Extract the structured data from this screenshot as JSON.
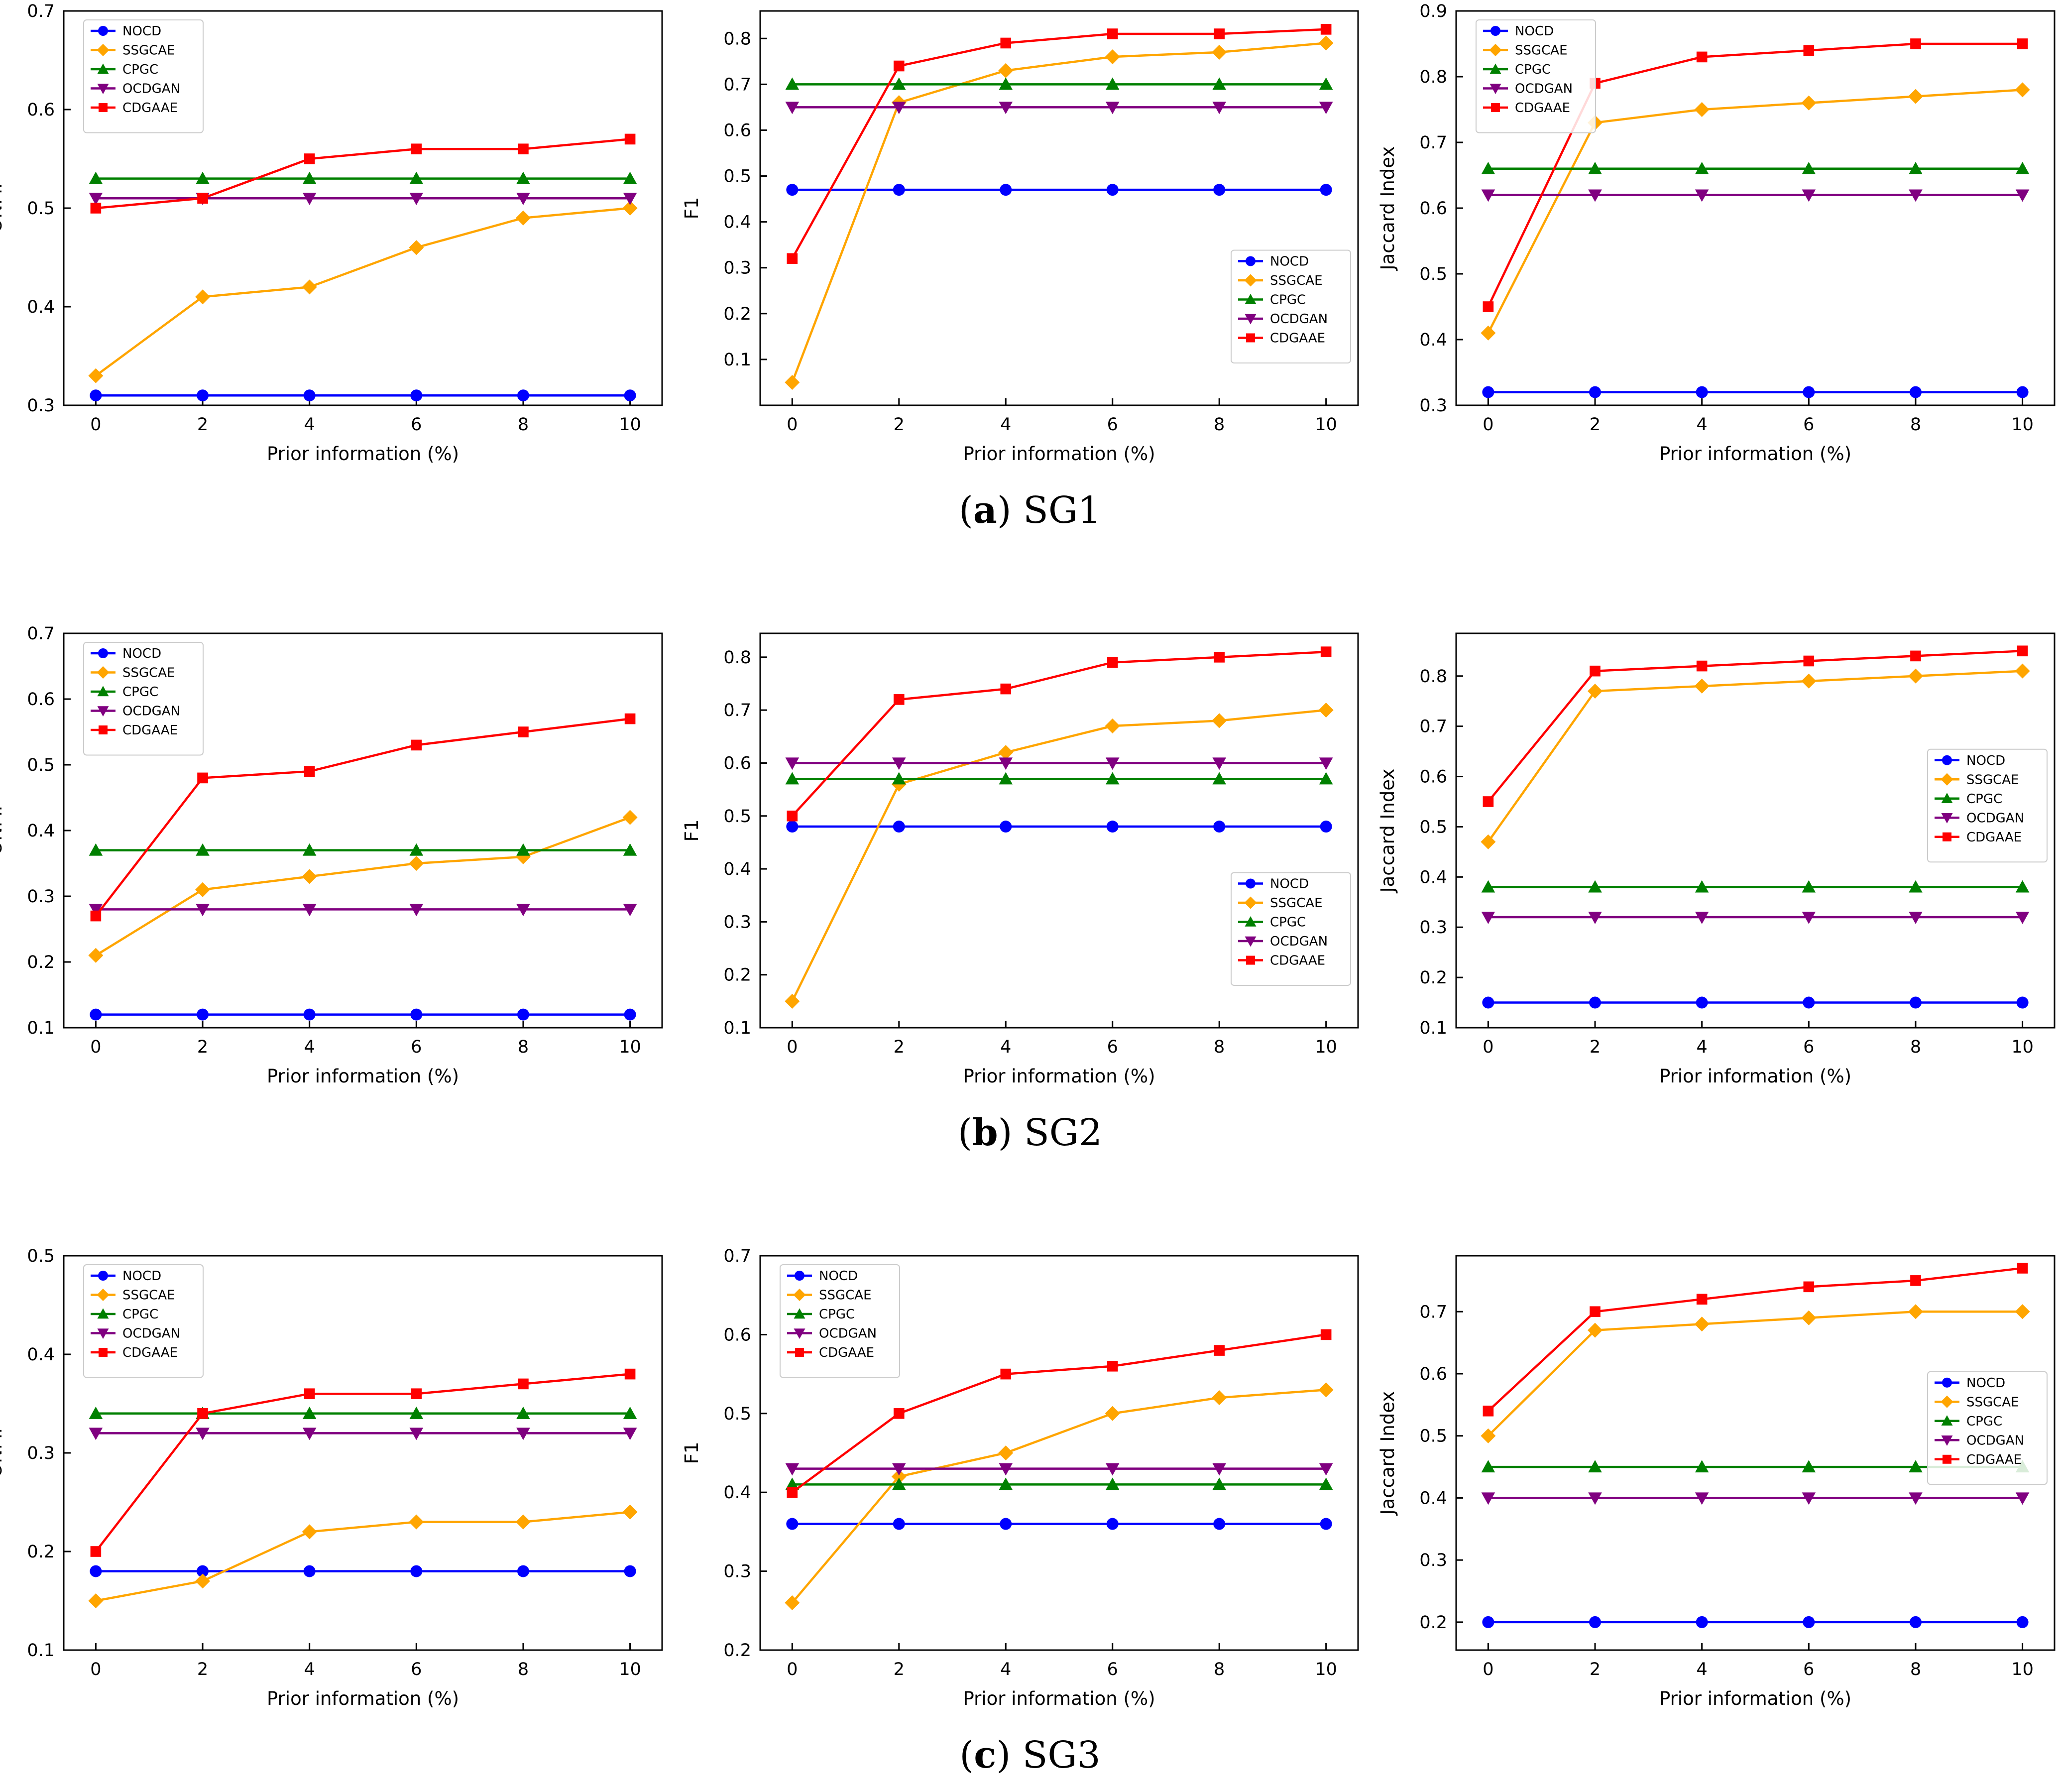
{
  "figure": {
    "row_captions": [
      {
        "letter": "a",
        "name": "SG1"
      },
      {
        "letter": "b",
        "name": "SG2"
      },
      {
        "letter": "c",
        "name": "SG3"
      }
    ]
  },
  "styles": {
    "NOCD": {
      "color": "#0000ff",
      "marker": "circle"
    },
    "SSGCAE": {
      "color": "#ffa500",
      "marker": "diamond"
    },
    "CPGC": {
      "color": "#008000",
      "marker": "triangle-up"
    },
    "OCDGAN": {
      "color": "#800080",
      "marker": "triangle-down"
    },
    "CDGAAE": {
      "color": "#ff0000",
      "marker": "square"
    }
  },
  "chart_data": [
    {
      "type": "line",
      "group": "SG1",
      "xlabel": "Prior information (%)",
      "ylabel": "ONMI",
      "x": [
        0,
        2,
        4,
        6,
        8,
        10
      ],
      "xlim": [
        -0.6,
        10.6
      ],
      "xticks": [
        "0",
        "2",
        "4",
        "6",
        "8",
        "10"
      ],
      "ylim": [
        0.3,
        0.7
      ],
      "yticks": [
        "0.3",
        "0.4",
        "0.5",
        "0.6",
        "0.7"
      ],
      "legend": "upper-left",
      "series": [
        {
          "name": "NOCD",
          "values": [
            0.31,
            0.31,
            0.31,
            0.31,
            0.31,
            0.31
          ]
        },
        {
          "name": "SSGCAE",
          "values": [
            0.33,
            0.41,
            0.42,
            0.46,
            0.49,
            0.5
          ]
        },
        {
          "name": "CPGC",
          "values": [
            0.53,
            0.53,
            0.53,
            0.53,
            0.53,
            0.53
          ]
        },
        {
          "name": "OCDGAN",
          "values": [
            0.51,
            0.51,
            0.51,
            0.51,
            0.51,
            0.51
          ]
        },
        {
          "name": "CDGAAE",
          "values": [
            0.5,
            0.51,
            0.55,
            0.56,
            0.56,
            0.57
          ]
        }
      ]
    },
    {
      "type": "line",
      "group": "SG1",
      "xlabel": "Prior information (%)",
      "ylabel": "F1",
      "x": [
        0,
        2,
        4,
        6,
        8,
        10
      ],
      "xlim": [
        -0.6,
        10.6
      ],
      "xticks": [
        "0",
        "2",
        "4",
        "6",
        "8",
        "10"
      ],
      "ylim": [
        0.0,
        0.86
      ],
      "yticks": [
        "0.1",
        "0.2",
        "0.3",
        "0.4",
        "0.5",
        "0.6",
        "0.7",
        "0.8"
      ],
      "legend": "lower-right",
      "series": [
        {
          "name": "NOCD",
          "values": [
            0.47,
            0.47,
            0.47,
            0.47,
            0.47,
            0.47
          ]
        },
        {
          "name": "SSGCAE",
          "values": [
            0.05,
            0.66,
            0.73,
            0.76,
            0.77,
            0.79
          ]
        },
        {
          "name": "CPGC",
          "values": [
            0.7,
            0.7,
            0.7,
            0.7,
            0.7,
            0.7
          ]
        },
        {
          "name": "OCDGAN",
          "values": [
            0.65,
            0.65,
            0.65,
            0.65,
            0.65,
            0.65
          ]
        },
        {
          "name": "CDGAAE",
          "values": [
            0.32,
            0.74,
            0.79,
            0.81,
            0.81,
            0.82
          ]
        }
      ]
    },
    {
      "type": "line",
      "group": "SG1",
      "xlabel": "Prior information (%)",
      "ylabel": "Jaccard Index",
      "x": [
        0,
        2,
        4,
        6,
        8,
        10
      ],
      "xlim": [
        -0.6,
        10.6
      ],
      "xticks": [
        "0",
        "2",
        "4",
        "6",
        "8",
        "10"
      ],
      "ylim": [
        0.3,
        0.9
      ],
      "yticks": [
        "0.3",
        "0.4",
        "0.5",
        "0.6",
        "0.7",
        "0.8",
        "0.9"
      ],
      "legend": "upper-left",
      "series": [
        {
          "name": "NOCD",
          "values": [
            0.32,
            0.32,
            0.32,
            0.32,
            0.32,
            0.32
          ]
        },
        {
          "name": "SSGCAE",
          "values": [
            0.41,
            0.73,
            0.75,
            0.76,
            0.77,
            0.78
          ]
        },
        {
          "name": "CPGC",
          "values": [
            0.66,
            0.66,
            0.66,
            0.66,
            0.66,
            0.66
          ]
        },
        {
          "name": "OCDGAN",
          "values": [
            0.62,
            0.62,
            0.62,
            0.62,
            0.62,
            0.62
          ]
        },
        {
          "name": "CDGAAE",
          "values": [
            0.45,
            0.79,
            0.83,
            0.84,
            0.85,
            0.85
          ]
        }
      ]
    },
    {
      "type": "line",
      "group": "SG2",
      "xlabel": "Prior information (%)",
      "ylabel": "ONMI",
      "x": [
        0,
        2,
        4,
        6,
        8,
        10
      ],
      "xlim": [
        -0.6,
        10.6
      ],
      "xticks": [
        "0",
        "2",
        "4",
        "6",
        "8",
        "10"
      ],
      "ylim": [
        0.1,
        0.7
      ],
      "yticks": [
        "0.1",
        "0.2",
        "0.3",
        "0.4",
        "0.5",
        "0.6",
        "0.7"
      ],
      "legend": "upper-left",
      "series": [
        {
          "name": "NOCD",
          "values": [
            0.12,
            0.12,
            0.12,
            0.12,
            0.12,
            0.12
          ]
        },
        {
          "name": "SSGCAE",
          "values": [
            0.21,
            0.31,
            0.33,
            0.35,
            0.36,
            0.42
          ]
        },
        {
          "name": "CPGC",
          "values": [
            0.37,
            0.37,
            0.37,
            0.37,
            0.37,
            0.37
          ]
        },
        {
          "name": "OCDGAN",
          "values": [
            0.28,
            0.28,
            0.28,
            0.28,
            0.28,
            0.28
          ]
        },
        {
          "name": "CDGAAE",
          "values": [
            0.27,
            0.48,
            0.49,
            0.53,
            0.55,
            0.57
          ]
        }
      ]
    },
    {
      "type": "line",
      "group": "SG2",
      "xlabel": "Prior information (%)",
      "ylabel": "F1",
      "x": [
        0,
        2,
        4,
        6,
        8,
        10
      ],
      "xlim": [
        -0.6,
        10.6
      ],
      "xticks": [
        "0",
        "2",
        "4",
        "6",
        "8",
        "10"
      ],
      "ylim": [
        0.1,
        0.845
      ],
      "yticks": [
        "0.1",
        "0.2",
        "0.3",
        "0.4",
        "0.5",
        "0.6",
        "0.7",
        "0.8"
      ],
      "legend": "lower-right",
      "series": [
        {
          "name": "NOCD",
          "values": [
            0.48,
            0.48,
            0.48,
            0.48,
            0.48,
            0.48
          ]
        },
        {
          "name": "SSGCAE",
          "values": [
            0.15,
            0.56,
            0.62,
            0.67,
            0.68,
            0.7
          ]
        },
        {
          "name": "CPGC",
          "values": [
            0.57,
            0.57,
            0.57,
            0.57,
            0.57,
            0.57
          ]
        },
        {
          "name": "OCDGAN",
          "values": [
            0.6,
            0.6,
            0.6,
            0.6,
            0.6,
            0.6
          ]
        },
        {
          "name": "CDGAAE",
          "values": [
            0.5,
            0.72,
            0.74,
            0.79,
            0.8,
            0.81
          ]
        }
      ]
    },
    {
      "type": "line",
      "group": "SG2",
      "xlabel": "Prior information (%)",
      "ylabel": "Jaccard Index",
      "x": [
        0,
        2,
        4,
        6,
        8,
        10
      ],
      "xlim": [
        -0.6,
        10.6
      ],
      "xticks": [
        "0",
        "2",
        "4",
        "6",
        "8",
        "10"
      ],
      "ylim": [
        0.1,
        0.885
      ],
      "yticks": [
        "0.1",
        "0.2",
        "0.3",
        "0.4",
        "0.5",
        "0.6",
        "0.7",
        "0.8"
      ],
      "legend": "center-right",
      "series": [
        {
          "name": "NOCD",
          "values": [
            0.15,
            0.15,
            0.15,
            0.15,
            0.15,
            0.15
          ]
        },
        {
          "name": "SSGCAE",
          "values": [
            0.47,
            0.77,
            0.78,
            0.79,
            0.8,
            0.81
          ]
        },
        {
          "name": "CPGC",
          "values": [
            0.38,
            0.38,
            0.38,
            0.38,
            0.38,
            0.38
          ]
        },
        {
          "name": "OCDGAN",
          "values": [
            0.32,
            0.32,
            0.32,
            0.32,
            0.32,
            0.32
          ]
        },
        {
          "name": "CDGAAE",
          "values": [
            0.55,
            0.81,
            0.82,
            0.83,
            0.84,
            0.85
          ]
        }
      ]
    },
    {
      "type": "line",
      "group": "SG3",
      "xlabel": "Prior information (%)",
      "ylabel": "ONMI",
      "x": [
        0,
        2,
        4,
        6,
        8,
        10
      ],
      "xlim": [
        -0.6,
        10.6
      ],
      "xticks": [
        "0",
        "2",
        "4",
        "6",
        "8",
        "10"
      ],
      "ylim": [
        0.1,
        0.5
      ],
      "yticks": [
        "0.1",
        "0.2",
        "0.3",
        "0.4",
        "0.5"
      ],
      "legend": "upper-left",
      "series": [
        {
          "name": "NOCD",
          "values": [
            0.18,
            0.18,
            0.18,
            0.18,
            0.18,
            0.18
          ]
        },
        {
          "name": "SSGCAE",
          "values": [
            0.15,
            0.17,
            0.22,
            0.23,
            0.23,
            0.24
          ]
        },
        {
          "name": "CPGC",
          "values": [
            0.34,
            0.34,
            0.34,
            0.34,
            0.34,
            0.34
          ]
        },
        {
          "name": "OCDGAN",
          "values": [
            0.32,
            0.32,
            0.32,
            0.32,
            0.32,
            0.32
          ]
        },
        {
          "name": "CDGAAE",
          "values": [
            0.2,
            0.34,
            0.36,
            0.36,
            0.37,
            0.38
          ]
        }
      ]
    },
    {
      "type": "line",
      "group": "SG3",
      "xlabel": "Prior information (%)",
      "ylabel": "F1",
      "x": [
        0,
        2,
        4,
        6,
        8,
        10
      ],
      "xlim": [
        -0.6,
        10.6
      ],
      "xticks": [
        "0",
        "2",
        "4",
        "6",
        "8",
        "10"
      ],
      "ylim": [
        0.2,
        0.7
      ],
      "yticks": [
        "0.2",
        "0.3",
        "0.4",
        "0.5",
        "0.6",
        "0.7"
      ],
      "legend": "upper-left",
      "series": [
        {
          "name": "NOCD",
          "values": [
            0.36,
            0.36,
            0.36,
            0.36,
            0.36,
            0.36
          ]
        },
        {
          "name": "SSGCAE",
          "values": [
            0.26,
            0.42,
            0.45,
            0.5,
            0.52,
            0.53
          ]
        },
        {
          "name": "CPGC",
          "values": [
            0.41,
            0.41,
            0.41,
            0.41,
            0.41,
            0.41
          ]
        },
        {
          "name": "OCDGAN",
          "values": [
            0.43,
            0.43,
            0.43,
            0.43,
            0.43,
            0.43
          ]
        },
        {
          "name": "CDGAAE",
          "values": [
            0.4,
            0.5,
            0.55,
            0.56,
            0.58,
            0.6
          ]
        }
      ]
    },
    {
      "type": "line",
      "group": "SG3",
      "xlabel": "Prior information (%)",
      "ylabel": "Jaccard Index",
      "x": [
        0,
        2,
        4,
        6,
        8,
        10
      ],
      "xlim": [
        -0.6,
        10.6
      ],
      "xticks": [
        "0",
        "2",
        "4",
        "6",
        "8",
        "10"
      ],
      "ylim": [
        0.155,
        0.79
      ],
      "yticks": [
        "0.2",
        "0.3",
        "0.4",
        "0.5",
        "0.6",
        "0.7"
      ],
      "legend": "center-right",
      "series": [
        {
          "name": "NOCD",
          "values": [
            0.2,
            0.2,
            0.2,
            0.2,
            0.2,
            0.2
          ]
        },
        {
          "name": "SSGCAE",
          "values": [
            0.5,
            0.67,
            0.68,
            0.69,
            0.7,
            0.7
          ]
        },
        {
          "name": "CPGC",
          "values": [
            0.45,
            0.45,
            0.45,
            0.45,
            0.45,
            0.45
          ]
        },
        {
          "name": "OCDGAN",
          "values": [
            0.4,
            0.4,
            0.4,
            0.4,
            0.4,
            0.4
          ]
        },
        {
          "name": "CDGAAE",
          "values": [
            0.54,
            0.7,
            0.72,
            0.74,
            0.75,
            0.77
          ]
        }
      ]
    }
  ]
}
